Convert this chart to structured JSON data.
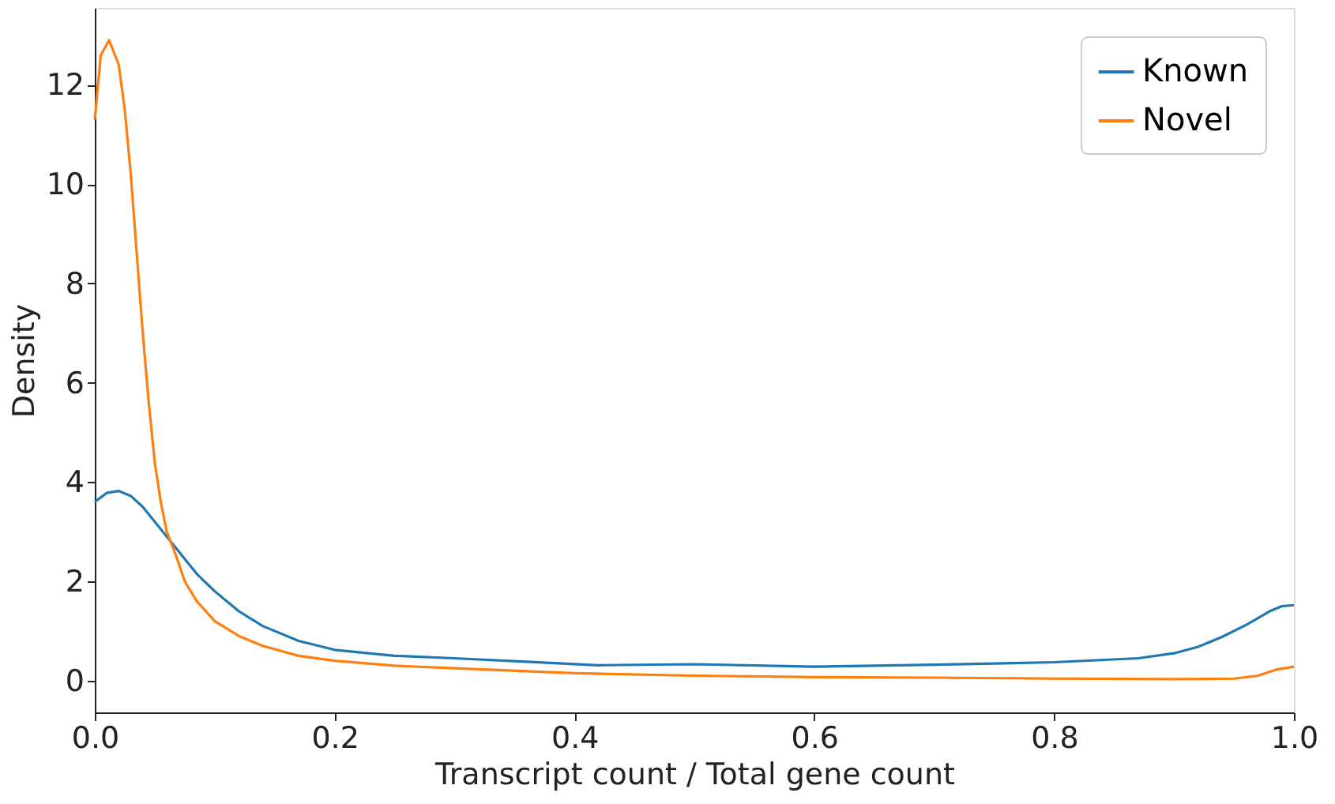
{
  "chart_data": {
    "type": "line",
    "xlabel": "Transcript count / Total gene count",
    "ylabel": "Density",
    "xlim": [
      0,
      1
    ],
    "xticks": [
      {
        "value": 0,
        "label": "0.0"
      },
      0.2,
      0.4,
      0.6,
      0.8,
      {
        "value": 1,
        "label": "1.0"
      }
    ],
    "ylim": [
      -0.64,
      13.55
    ],
    "yticks": [
      0,
      2,
      4,
      6,
      8,
      10,
      12
    ],
    "legend": "top right",
    "grid": false,
    "marker": "none",
    "line_style": "solid",
    "series": [
      {
        "name": "Known",
        "color": "#1f77b4",
        "x": [
          0,
          0.01,
          0.02,
          0.03,
          0.04,
          0.055,
          0.07,
          0.085,
          0.1,
          0.12,
          0.14,
          0.17,
          0.2,
          0.25,
          0.3,
          0.36,
          0.42,
          0.5,
          0.6,
          0.7,
          0.8,
          0.87,
          0.9,
          0.92,
          0.94,
          0.96,
          0.98,
          0.99,
          1.0
        ],
        "values": [
          3.6,
          3.78,
          3.82,
          3.72,
          3.5,
          3.05,
          2.6,
          2.15,
          1.8,
          1.4,
          1.1,
          0.8,
          0.62,
          0.5,
          0.45,
          0.38,
          0.31,
          0.33,
          0.28,
          0.32,
          0.37,
          0.45,
          0.55,
          0.68,
          0.88,
          1.12,
          1.4,
          1.5,
          1.52
        ]
      },
      {
        "name": "Novel",
        "color": "#ff7f0e",
        "x": [
          0,
          0.005,
          0.012,
          0.02,
          0.025,
          0.03,
          0.035,
          0.04,
          0.045,
          0.05,
          0.055,
          0.06,
          0.068,
          0.075,
          0.085,
          0.1,
          0.12,
          0.14,
          0.17,
          0.2,
          0.25,
          0.3,
          0.4,
          0.5,
          0.6,
          0.7,
          0.8,
          0.9,
          0.95,
          0.97,
          0.985,
          1.0
        ],
        "values": [
          11.3,
          12.6,
          12.9,
          12.4,
          11.5,
          10.2,
          8.6,
          7.0,
          5.6,
          4.4,
          3.6,
          3.0,
          2.5,
          2.0,
          1.6,
          1.2,
          0.9,
          0.7,
          0.5,
          0.4,
          0.3,
          0.25,
          0.15,
          0.1,
          0.07,
          0.06,
          0.04,
          0.03,
          0.04,
          0.1,
          0.22,
          0.28
        ]
      }
    ]
  }
}
